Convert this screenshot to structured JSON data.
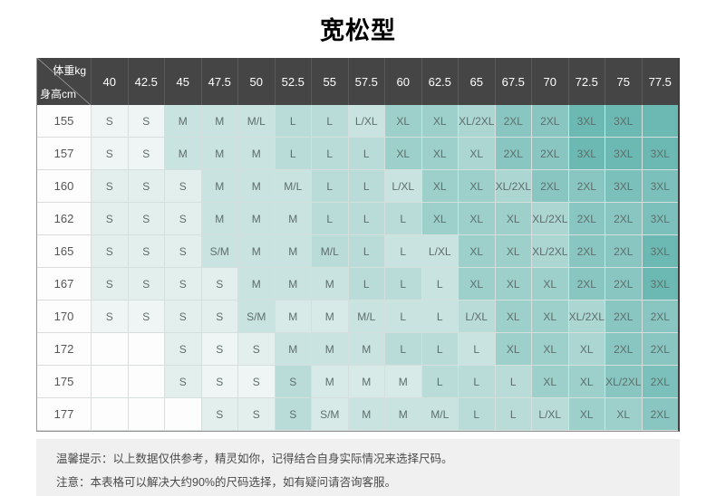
{
  "page": {
    "title": "宽松型"
  },
  "colors": {
    "header_bg": "#454545",
    "header_text": "#ffffff",
    "grid_line": "#d5dfde",
    "cell_text": "#5e6e6c",
    "label_text": "#555555",
    "footer_bg": "#f0f0f0",
    "footer_text": "#4a4a4a",
    "palette": [
      "#fdfdfd",
      "#eef5f4",
      "#e2efed",
      "#d7eae7",
      "#c9e3e0",
      "#b9dcd8",
      "#acd6d2",
      "#9dd0cb",
      "#8ac6c1",
      "#7bc0ba",
      "#6cb9b3"
    ]
  },
  "table": {
    "corner": {
      "top_right": "体重kg",
      "bottom_left": "身高cm"
    },
    "weight_headers": [
      "40",
      "42.5",
      "45",
      "47.5",
      "50",
      "52.5",
      "55",
      "57.5",
      "60",
      "62.5",
      "65",
      "67.5",
      "70",
      "72.5",
      "75",
      "77.5"
    ],
    "rows": [
      {
        "height": "155",
        "sizes": [
          "S",
          "S",
          "M",
          "M",
          "M/L",
          "L",
          "L",
          "L/XL",
          "XL",
          "XL",
          "XL/2XL",
          "2XL",
          "2XL",
          "3XL",
          "3XL",
          ""
        ],
        "levels": [
          1,
          1,
          4,
          4,
          4,
          5,
          5,
          4,
          7,
          7,
          6,
          8,
          8,
          10,
          10,
          10
        ]
      },
      {
        "height": "157",
        "sizes": [
          "S",
          "S",
          "M",
          "M",
          "M",
          "L",
          "L",
          "L",
          "XL",
          "XL",
          "XL",
          "2XL",
          "2XL",
          "3XL",
          "3XL",
          "3XL"
        ],
        "levels": [
          1,
          1,
          4,
          4,
          4,
          5,
          5,
          5,
          7,
          7,
          6,
          8,
          8,
          10,
          10,
          10
        ]
      },
      {
        "height": "160",
        "sizes": [
          "S",
          "S",
          "S",
          "M",
          "M",
          "M/L",
          "L",
          "L",
          "L/XL",
          "XL",
          "XL",
          "XL/2XL",
          "2XL",
          "2XL",
          "3XL",
          "3XL"
        ],
        "levels": [
          2,
          2,
          2,
          4,
          4,
          4,
          5,
          5,
          4,
          7,
          7,
          6,
          8,
          8,
          9,
          9
        ]
      },
      {
        "height": "162",
        "sizes": [
          "S",
          "S",
          "S",
          "M",
          "M",
          "M",
          "L",
          "L",
          "L",
          "XL",
          "XL",
          "XL",
          "XL/2XL",
          "2XL",
          "2XL",
          "3XL"
        ],
        "levels": [
          2,
          2,
          2,
          4,
          4,
          4,
          5,
          5,
          5,
          7,
          7,
          7,
          6,
          8,
          8,
          9
        ]
      },
      {
        "height": "165",
        "sizes": [
          "S",
          "S",
          "S",
          "S/M",
          "M",
          "M",
          "M/L",
          "L",
          "L",
          "L/XL",
          "XL",
          "XL",
          "XL/2XL",
          "2XL",
          "2XL",
          "3XL"
        ],
        "levels": [
          2,
          2,
          2,
          4,
          4,
          4,
          5,
          5,
          4,
          4,
          7,
          7,
          6,
          8,
          8,
          10
        ]
      },
      {
        "height": "167",
        "sizes": [
          "S",
          "S",
          "S",
          "S",
          "M",
          "M",
          "M",
          "L",
          "L",
          "L",
          "XL",
          "XL",
          "XL",
          "2XL",
          "2XL",
          "3XL"
        ],
        "levels": [
          2,
          2,
          2,
          2,
          4,
          4,
          4,
          5,
          5,
          4,
          7,
          7,
          7,
          8,
          8,
          10
        ]
      },
      {
        "height": "170",
        "sizes": [
          "S",
          "S",
          "S",
          "S",
          "S/M",
          "M",
          "M",
          "M/L",
          "L",
          "L",
          "L/XL",
          "XL",
          "XL",
          "XL/2XL",
          "2XL",
          "2XL"
        ],
        "levels": [
          1,
          1,
          2,
          2,
          4,
          3,
          3,
          4,
          4,
          4,
          5,
          7,
          7,
          6,
          8,
          8
        ]
      },
      {
        "height": "172",
        "sizes": [
          "",
          "",
          "S",
          "S",
          "S",
          "M",
          "M",
          "M",
          "L",
          "L",
          "L",
          "XL",
          "XL",
          "XL",
          "2XL",
          "2XL"
        ],
        "levels": [
          0,
          0,
          2,
          1,
          2,
          4,
          4,
          4,
          5,
          5,
          4,
          7,
          7,
          6,
          8,
          8
        ]
      },
      {
        "height": "175",
        "sizes": [
          "",
          "",
          "S",
          "S",
          "S",
          "S",
          "M",
          "M",
          "M",
          "L",
          "L",
          "L",
          "XL",
          "XL",
          "XL/2XL",
          "2XL"
        ],
        "levels": [
          0,
          0,
          2,
          1,
          1,
          5,
          3,
          3,
          3,
          5,
          5,
          5,
          7,
          7,
          8,
          9
        ]
      },
      {
        "height": "177",
        "sizes": [
          "",
          "",
          "",
          "S",
          "S",
          "S",
          "S/M",
          "M",
          "M",
          "M/L",
          "L",
          "L",
          "L/XL",
          "XL",
          "XL",
          "2XL"
        ],
        "levels": [
          0,
          0,
          0,
          2,
          2,
          5,
          3,
          4,
          4,
          4,
          5,
          5,
          5,
          7,
          7,
          8
        ]
      }
    ]
  },
  "footer": {
    "line1": "温馨提示：以上数据仅供参考，精灵如你，记得结合自身实际情况来选择尺码。",
    "line2": "注意：本表格可以解决大约90%的尺码选择，如有疑问请咨询客服。"
  }
}
